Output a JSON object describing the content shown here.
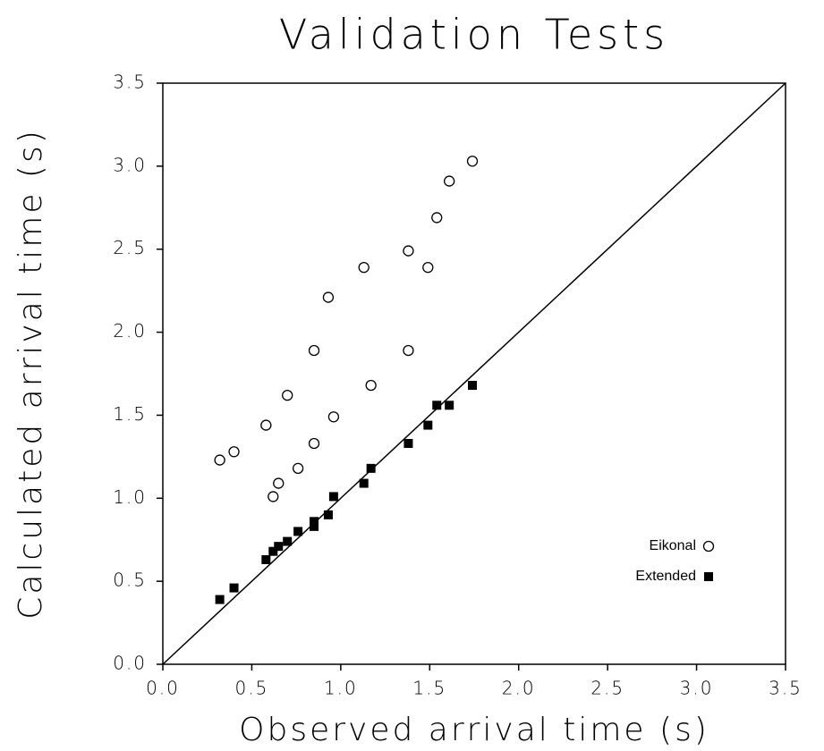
{
  "chart_data": {
    "type": "scatter",
    "title": "Validation Tests",
    "x_label": "Observed arrival time (s)",
    "y_label": "Calculated arrival time (s)",
    "xlim": [
      0,
      3.5
    ],
    "ylim": [
      0,
      3.5
    ],
    "xticks": [
      {
        "value": 0,
        "label": "0.0"
      },
      0.5,
      {
        "value": 1,
        "label": "1.0"
      },
      1.5,
      {
        "value": 2,
        "label": "2.0"
      },
      2.5,
      {
        "value": 3,
        "label": "3.0"
      },
      3.5
    ],
    "yticks": [
      {
        "value": 0,
        "label": "0.0"
      },
      0.5,
      {
        "value": 1,
        "label": "1.0"
      },
      1.5,
      {
        "value": 2,
        "label": "2.0"
      },
      2.5,
      {
        "value": 3,
        "label": "3.0"
      },
      3.5
    ],
    "legend": "lower right",
    "series": [
      {
        "name": "Eikonal",
        "marker": "circle",
        "color": "#000000",
        "x": [
          0.32,
          0.4,
          0.58,
          0.62,
          0.65,
          0.7,
          0.76,
          0.85,
          0.85,
          0.93,
          0.96,
          1.13,
          1.17,
          1.38,
          1.38,
          1.49,
          1.54,
          1.61,
          1.74
        ],
        "values": [
          1.23,
          1.28,
          1.44,
          1.01,
          1.09,
          1.62,
          1.18,
          1.33,
          1.89,
          2.21,
          1.49,
          2.39,
          1.68,
          1.89,
          2.49,
          2.39,
          2.69,
          2.91,
          3.03
        ]
      },
      {
        "name": "Extended",
        "marker": "square",
        "color": "#000000",
        "x": [
          0.32,
          0.4,
          0.58,
          0.62,
          0.65,
          0.7,
          0.76,
          0.85,
          0.85,
          0.93,
          0.96,
          1.13,
          1.17,
          1.38,
          1.49,
          1.54,
          1.61,
          1.74
        ],
        "values": [
          0.39,
          0.46,
          0.63,
          0.68,
          0.71,
          0.74,
          0.8,
          0.86,
          0.83,
          0.9,
          1.01,
          1.09,
          1.18,
          1.33,
          1.44,
          1.56,
          1.56,
          1.68
        ]
      }
    ]
  }
}
